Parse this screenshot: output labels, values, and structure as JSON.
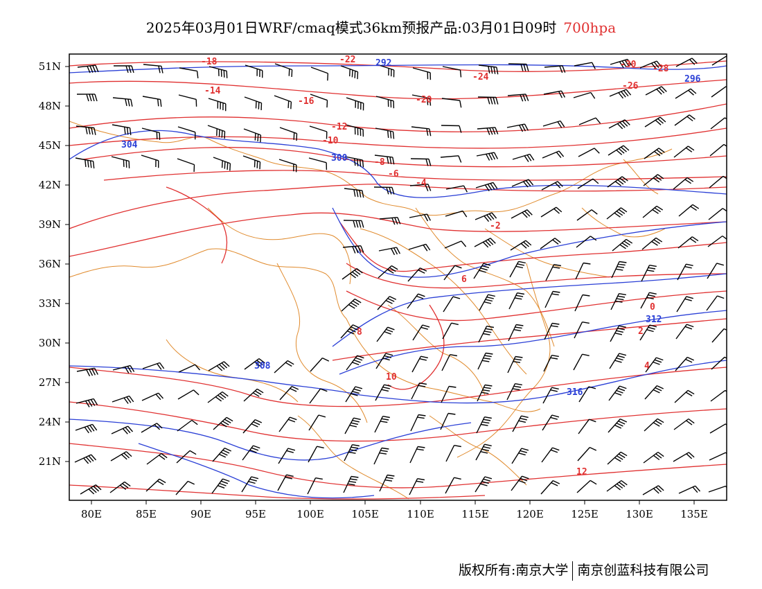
{
  "title": {
    "main": "2025年03月01日WRF/cmaq模式36km预报产品:03月01日09时",
    "level": "700hpa"
  },
  "map": {
    "lon_range": [
      78,
      138
    ],
    "lat_range": [
      18,
      52
    ],
    "lat_ticks": [
      "51N",
      "48N",
      "45N",
      "42N",
      "39N",
      "36N",
      "33N",
      "30N",
      "27N",
      "24N",
      "21N"
    ],
    "lon_ticks": [
      "80E",
      "85E",
      "90E",
      "95E",
      "100E",
      "105E",
      "110E",
      "115E",
      "120E",
      "125E",
      "130E",
      "135E"
    ],
    "temperature_labels": [
      "-18",
      "-16",
      "-14",
      "-12",
      "-10",
      "-8",
      "-6",
      "-4",
      "-2",
      "0",
      "2",
      "4",
      "6",
      "8",
      "10",
      "12",
      "-22",
      "-24",
      "-26",
      "-28",
      "-30",
      "-20"
    ],
    "height_labels": [
      "292",
      "296",
      "300",
      "304",
      "308",
      "312",
      "316"
    ],
    "colors": {
      "temperature": "#e03030",
      "height": "#2a3fd6",
      "border": "#e08a2c",
      "wind": "#000000"
    }
  },
  "footer": {
    "copyright": "版权所有:南京大学",
    "company": "南京创蓝科技有限公司"
  }
}
